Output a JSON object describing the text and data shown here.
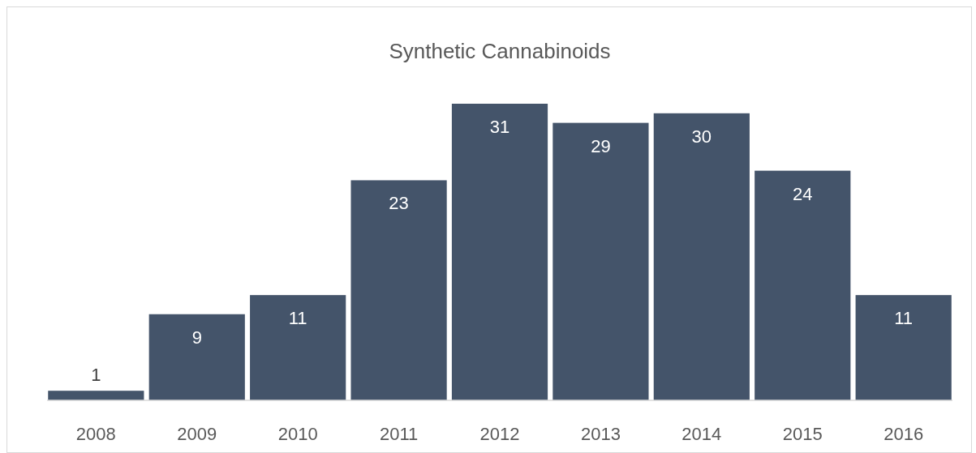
{
  "chart_data": {
    "type": "bar",
    "title": "Synthetic Cannabinoids",
    "categories": [
      "2008",
      "2009",
      "2010",
      "2011",
      "2012",
      "2013",
      "2014",
      "2015",
      "2016"
    ],
    "values": [
      1,
      9,
      11,
      23,
      31,
      29,
      30,
      24,
      11
    ],
    "color": "#44546a",
    "data_labels": true
  }
}
